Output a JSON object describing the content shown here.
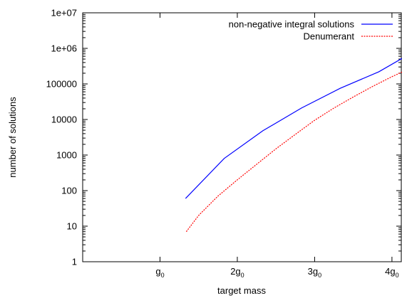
{
  "chart_data": {
    "type": "line",
    "xlabel": "target mass",
    "ylabel": "number of solutions",
    "yscale": "log",
    "ylim": [
      1,
      10000000
    ],
    "xlim": [
      0,
      4.13
    ],
    "grid": false,
    "legend_position": "top-right",
    "y_ticks": [
      {
        "value": 1,
        "label": "1"
      },
      {
        "value": 10,
        "label": "10"
      },
      {
        "value": 100,
        "label": "100"
      },
      {
        "value": 1000,
        "label": "1000"
      },
      {
        "value": 10000,
        "label": "10000"
      },
      {
        "value": 100000,
        "label": "100000"
      },
      {
        "value": 1000000,
        "label": "1e+06"
      },
      {
        "value": 10000000,
        "label": "1e+07"
      }
    ],
    "x_ticks": [
      {
        "value": 1,
        "base": "g",
        "sub": "0"
      },
      {
        "value": 2,
        "base": "2g",
        "sub": "0"
      },
      {
        "value": 3,
        "base": "3g",
        "sub": "0"
      },
      {
        "value": 4,
        "base": "4g",
        "sub": "0"
      }
    ],
    "series": [
      {
        "name": "non-negative integral solutions",
        "color": "#0000ff",
        "style": "solid",
        "x": [
          1.33,
          1.83,
          2.33,
          2.83,
          3.33,
          3.83,
          4.13
        ],
        "y": [
          60,
          800,
          4800,
          21000,
          75000,
          220000,
          520000
        ]
      },
      {
        "name": "Denumerant",
        "color": "#ff0000",
        "style": "dashed",
        "x": [
          1.34,
          1.5,
          1.75,
          2.0,
          2.25,
          2.5,
          2.75,
          3.0,
          3.25,
          3.5,
          3.75,
          4.0,
          4.13
        ],
        "y": [
          7,
          20,
          70,
          200,
          550,
          1500,
          3800,
          9500,
          21000,
          43000,
          85000,
          160000,
          215000
        ]
      }
    ]
  }
}
